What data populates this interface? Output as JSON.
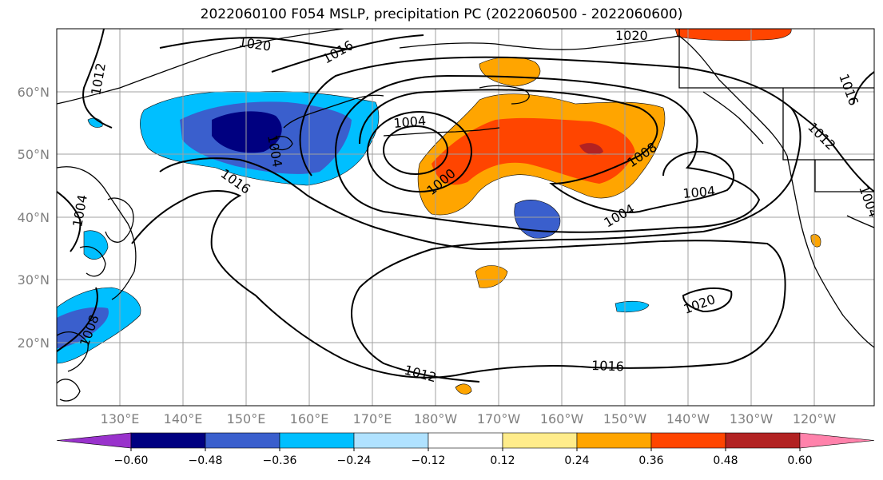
{
  "title": "2022060100 F054 MSLP, precipitation PC (2022060500 - 2022060600)",
  "lat_labels": [
    "60°N",
    "50°N",
    "40°N",
    "30°N",
    "20°N"
  ],
  "lon_labels": [
    "130°E",
    "140°E",
    "150°E",
    "160°E",
    "170°E",
    "180°W",
    "170°W",
    "160°W",
    "150°W",
    "140°W",
    "130°W",
    "120°W"
  ],
  "isobar_labels": [
    "1020",
    "1016",
    "1012",
    "1004",
    "1020",
    "1004",
    "1000",
    "1008",
    "1016",
    "1004",
    "1004",
    "1012",
    "1008",
    "1012",
    "1016",
    "1020",
    "1004",
    "1016",
    "1004"
  ],
  "colorbar": {
    "ticks": [
      "−0.60",
      "−0.48",
      "−0.36",
      "−0.24",
      "−0.12",
      "0.12",
      "0.24",
      "0.36",
      "0.48",
      "0.60"
    ],
    "colors": [
      "#9932cc",
      "#000080",
      "#3a5fcd",
      "#00bfff",
      "#b0e2ff",
      "#ffffff",
      "#ffec8b",
      "#ffa500",
      "#ff4500",
      "#b22222",
      "#ff82ab"
    ]
  },
  "colors": {
    "strong_negative": "#000080",
    "negative": "#3a5fcd",
    "mild_negative": "#00bfff",
    "weak_negative": "#b0e2ff",
    "weak_positive": "#ffec8b",
    "mild_positive": "#ffa500",
    "positive": "#ff4500",
    "strong_positive": "#b22222"
  }
}
